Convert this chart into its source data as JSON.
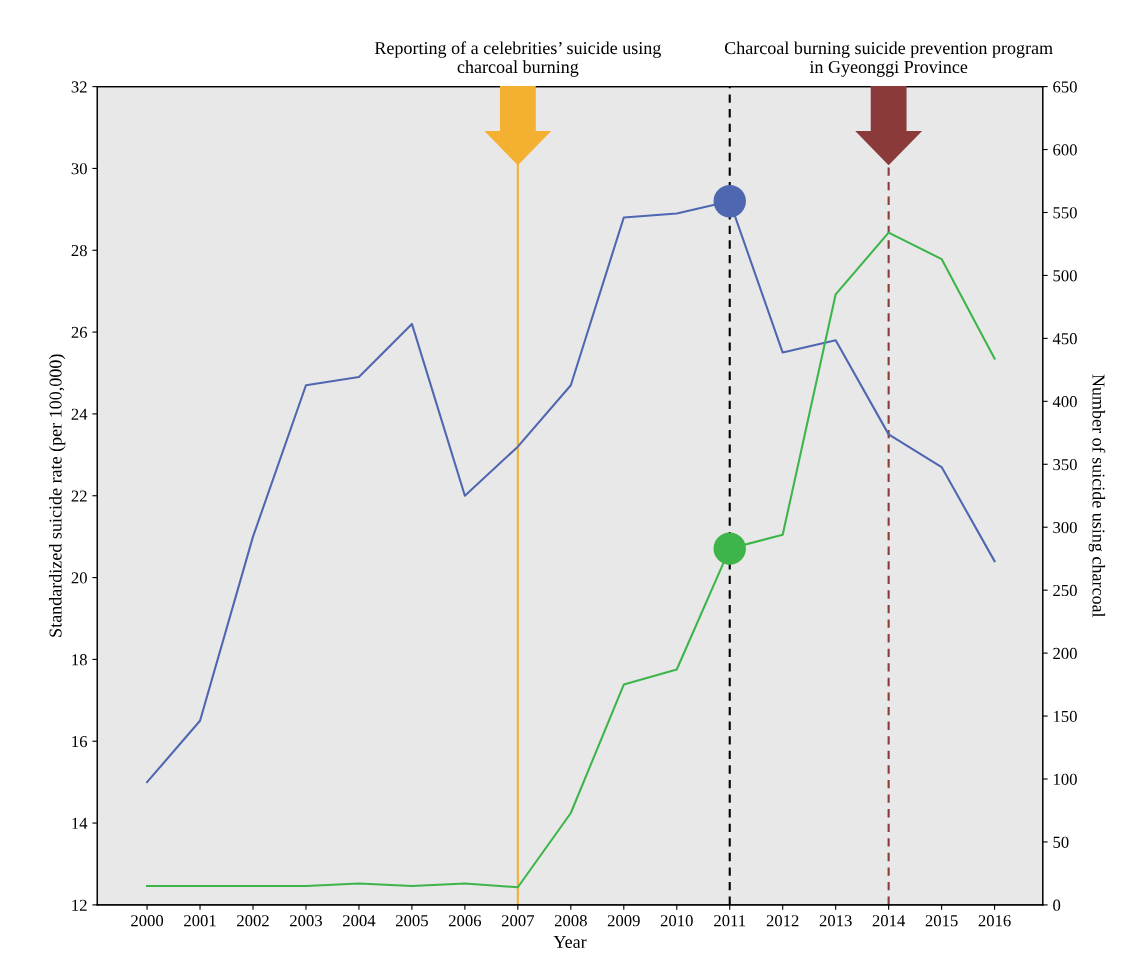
{
  "chart_data": {
    "type": "line",
    "xlabel": "Year",
    "ylabel": "Standardized suicide rate (per 100,000)",
    "y2label": "Number of suicide using charcoal",
    "categories": [
      "2000",
      "2001",
      "2002",
      "2003",
      "2004",
      "2005",
      "2006",
      "2007",
      "2008",
      "2009",
      "2010",
      "2011",
      "2012",
      "2013",
      "2014",
      "2015",
      "2016"
    ],
    "series": [
      {
        "color": "#4f67b0",
        "values": [
          15.0,
          16.5,
          21.0,
          24.7,
          24.9,
          26.2,
          22.0,
          23.2,
          24.7,
          28.8,
          28.9,
          29.2,
          25.5,
          25.8,
          23.5,
          22.7,
          20.4
        ]
      },
      {
        "color": "#3db54a",
        "axis": "y2",
        "values": [
          15,
          15,
          15,
          15,
          17,
          15,
          17,
          14,
          73,
          175,
          187,
          283,
          294,
          485,
          534,
          513,
          434
        ]
      },
      {
        "type": "scatter",
        "marker": "circle",
        "color": "#4f67b0",
        "values": [
          null,
          null,
          null,
          null,
          null,
          null,
          null,
          null,
          null,
          null,
          null,
          29.2,
          null,
          null,
          null,
          null,
          null
        ]
      },
      {
        "type": "scatter",
        "marker": "circle",
        "color": "#3db54a",
        "axis": "y2",
        "values": [
          null,
          null,
          null,
          null,
          null,
          null,
          null,
          null,
          null,
          null,
          null,
          283,
          null,
          null,
          null,
          null,
          null
        ]
      }
    ],
    "ylim": [
      12,
      32
    ],
    "yticks": [
      12,
      14,
      16,
      18,
      20,
      22,
      24,
      26,
      28,
      30,
      32
    ],
    "y2lim": [
      0,
      650
    ],
    "y2ticks": [
      0,
      50,
      100,
      150,
      200,
      250,
      300,
      350,
      400,
      450,
      500,
      550,
      600,
      650
    ],
    "ref_lines": [
      {
        "axis": "x",
        "value": "2007",
        "label": "Reporting of a celebrities’ suicide using\ncharcoal burning",
        "color": "#f4b131",
        "line_style": "solid"
      },
      {
        "axis": "x",
        "value": "2011",
        "color": "#000000",
        "line_style": "dashed"
      },
      {
        "axis": "x",
        "value": "2014",
        "label": "Charcoal burning suicide prevention program\nin Gyeonggi Province",
        "color": "#8b3a3a",
        "line_style": "dashed"
      }
    ],
    "grid": false
  }
}
